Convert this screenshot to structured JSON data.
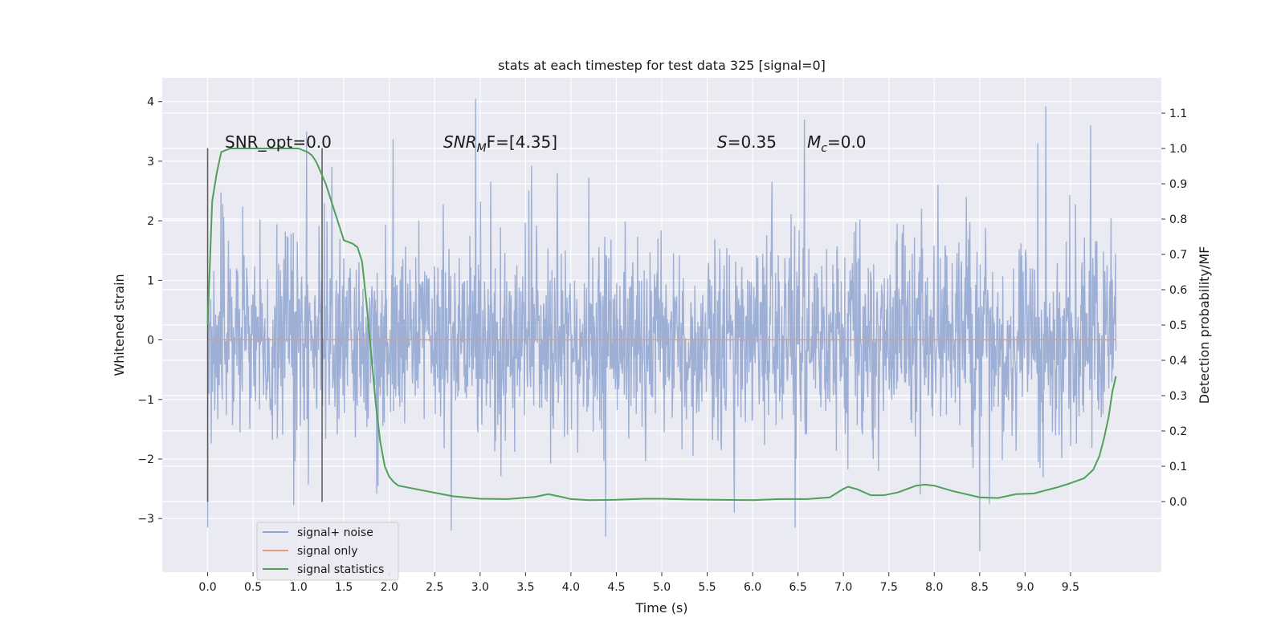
{
  "chart_data": {
    "type": "line",
    "title": "stats at each timestep for test data 325 [signal=0]",
    "xlabel": "Time (s)",
    "ylabel": "Whitened strain",
    "y2label": "Detection probability/MF",
    "xlim": [
      -0.5,
      10.5
    ],
    "ylim": [
      -3.9,
      4.4
    ],
    "y2lim": [
      -0.2,
      1.2
    ],
    "x_ticks": [
      0.0,
      0.5,
      1.0,
      1.5,
      2.0,
      2.5,
      3.0,
      3.5,
      4.0,
      4.5,
      5.0,
      5.5,
      6.0,
      6.5,
      7.0,
      7.5,
      8.0,
      8.5,
      9.0,
      9.5
    ],
    "x_tick_labels": [
      "0.0",
      "0.5",
      "1.0",
      "1.5",
      "2.0",
      "2.5",
      "3.0",
      "3.5",
      "4.0",
      "4.5",
      "5.0",
      "5.5",
      "6.0",
      "6.5",
      "7.0",
      "7.5",
      "8.0",
      "8.5",
      "9.0",
      "9.5"
    ],
    "y_ticks": [
      -3,
      -2,
      -1,
      0,
      1,
      2,
      3,
      4
    ],
    "y_tick_labels": [
      "−3",
      "−2",
      "−1",
      "0",
      "1",
      "2",
      "3",
      "4"
    ],
    "y2_ticks": [
      0.0,
      0.1,
      0.2,
      0.3,
      0.4,
      0.5,
      0.6,
      0.7,
      0.8,
      0.9,
      1.0,
      1.1
    ],
    "y2_tick_labels": [
      "0.0",
      "0.1",
      "0.2",
      "0.3",
      "0.4",
      "0.5",
      "0.6",
      "0.7",
      "0.8",
      "0.9",
      "1.0",
      "1.1"
    ],
    "grid": true,
    "legend_placement": "lower-left",
    "annotations": {
      "snr_opt": "SNR_opt=0.0",
      "snr_mf_prefix": "SNR",
      "snr_mf_sub": "M",
      "snr_mf_suffix": "F=[4.35]",
      "s_prefix": "S",
      "s_value": "=0.35",
      "mc_prefix": "M",
      "mc_sub": "c",
      "mc_value": "=0.0"
    },
    "vlines": [
      {
        "x": 0.0,
        "y_range": [
          -2.72,
          3.22
        ],
        "color": "#595959"
      },
      {
        "x": 1.26,
        "y_range": [
          -2.72,
          3.22
        ],
        "color": "#595959"
      }
    ],
    "series": [
      {
        "name": "signal+ noise",
        "axis": "left",
        "color": "#8fa5d0",
        "x_range": [
          0.0,
          10.0
        ],
        "sample_count": 2048,
        "std": 0.85,
        "max": 4.05,
        "min": -3.55,
        "peaks": [
          [
            2.95,
            4.05
          ],
          [
            9.23,
            3.92
          ],
          [
            9.72,
            3.6
          ],
          [
            2.04,
            3.37
          ],
          [
            6.57,
            3.7
          ],
          [
            9.14,
            3.3
          ],
          [
            1.09,
            3.5
          ],
          [
            3.85,
            2.8
          ]
        ],
        "troughs": [
          [
            8.5,
            -3.55
          ],
          [
            2.68,
            -3.2
          ],
          [
            6.47,
            -3.15
          ],
          [
            0.0,
            -3.15
          ],
          [
            5.8,
            -2.9
          ],
          [
            4.38,
            -3.3
          ]
        ]
      },
      {
        "name": "signal only",
        "axis": "left",
        "color": "#e39a80",
        "x": [
          0.0,
          10.0
        ],
        "y": [
          0.0,
          0.0
        ]
      },
      {
        "name": "signal statistics",
        "axis": "right",
        "color": "#4fa05a",
        "x": [
          0.0,
          0.05,
          0.1,
          0.15,
          0.25,
          0.4,
          0.6,
          0.9,
          1.0,
          1.1,
          1.15,
          1.2,
          1.3,
          1.35,
          1.45,
          1.5,
          1.55,
          1.6,
          1.65,
          1.7,
          1.75,
          1.8,
          1.85,
          1.9,
          1.95,
          2.0,
          2.05,
          2.1,
          2.2,
          2.3,
          2.4,
          2.5,
          2.7,
          3.0,
          3.3,
          3.6,
          3.75,
          3.9,
          4.0,
          4.2,
          4.5,
          4.8,
          5.0,
          5.3,
          5.6,
          6.0,
          6.3,
          6.6,
          6.85,
          7.0,
          7.05,
          7.15,
          7.3,
          7.45,
          7.6,
          7.8,
          7.9,
          8.0,
          8.2,
          8.5,
          8.7,
          8.9,
          9.1,
          9.2,
          9.35,
          9.5,
          9.65,
          9.75,
          9.82,
          9.87,
          9.92,
          9.96,
          10.0
        ],
        "y": [
          0.5,
          0.85,
          0.93,
          0.99,
          1.0,
          1.0,
          1.0,
          1.0,
          1.0,
          0.99,
          0.98,
          0.96,
          0.9,
          0.86,
          0.78,
          0.74,
          0.735,
          0.73,
          0.72,
          0.68,
          0.56,
          0.42,
          0.28,
          0.17,
          0.1,
          0.07,
          0.055,
          0.045,
          0.04,
          0.035,
          0.03,
          0.025,
          0.015,
          0.008,
          0.007,
          0.013,
          0.021,
          0.013,
          0.007,
          0.004,
          0.005,
          0.008,
          0.008,
          0.006,
          0.005,
          0.004,
          0.007,
          0.007,
          0.012,
          0.036,
          0.042,
          0.035,
          0.018,
          0.018,
          0.026,
          0.045,
          0.048,
          0.045,
          0.03,
          0.012,
          0.01,
          0.021,
          0.023,
          0.03,
          0.04,
          0.052,
          0.066,
          0.09,
          0.13,
          0.18,
          0.24,
          0.31,
          0.355
        ]
      }
    ]
  }
}
